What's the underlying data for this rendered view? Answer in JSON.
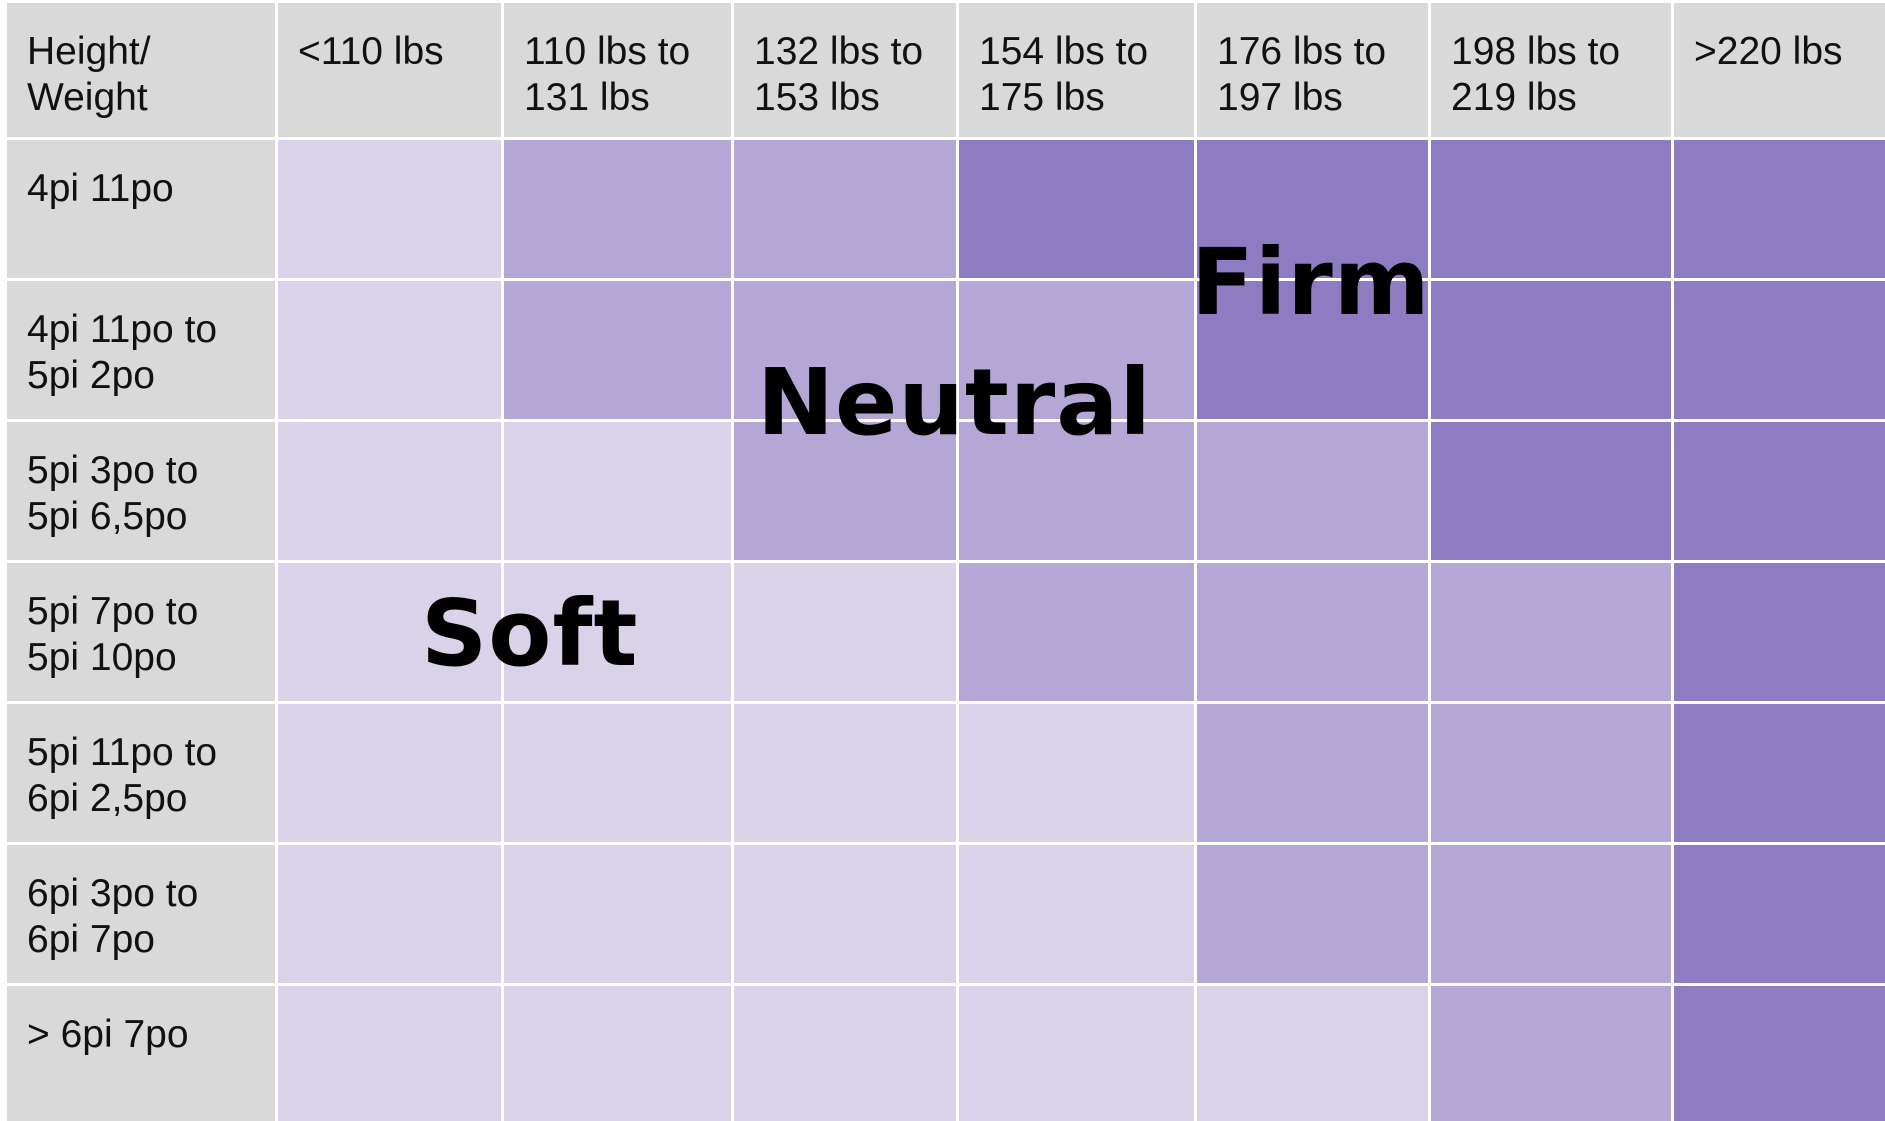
{
  "chart_data": {
    "type": "heatmap",
    "corner_label": "Height/\nWeight",
    "columns": [
      "<110 lbs",
      "110 lbs to\n131 lbs",
      "132 lbs to\n153 lbs",
      "154 lbs to\n175 lbs",
      "176 lbs to\n197 lbs",
      "198 lbs to\n219 lbs",
      ">220 lbs"
    ],
    "rows": [
      "4pi 11po",
      "4pi 11po to\n5pi 2po",
      "5pi 3po to\n5pi 6,5po",
      "5pi 7po to\n5pi 10po",
      "5pi 11po to\n6pi 2,5po",
      "6pi 3po to\n6pi 7po",
      "> 6pi 7po"
    ],
    "levels": [
      "Soft",
      "Neutral",
      "Firm"
    ],
    "level_colors": {
      "Soft": "#d9d2e9",
      "Neutral": "#b4a7d6",
      "Firm": "#8e7cc3"
    },
    "values": [
      [
        0,
        1,
        1,
        2,
        2,
        2,
        2
      ],
      [
        0,
        1,
        1,
        1,
        2,
        2,
        2
      ],
      [
        0,
        0,
        1,
        1,
        1,
        2,
        2
      ],
      [
        0,
        0,
        0,
        1,
        1,
        1,
        2
      ],
      [
        0,
        0,
        0,
        0,
        1,
        1,
        2
      ],
      [
        0,
        0,
        0,
        0,
        1,
        1,
        2
      ],
      [
        0,
        0,
        0,
        0,
        0,
        1,
        2
      ]
    ],
    "annotations": [
      "Firm",
      "Neutral",
      "Soft"
    ]
  },
  "header_bg": "#d9d9d9"
}
